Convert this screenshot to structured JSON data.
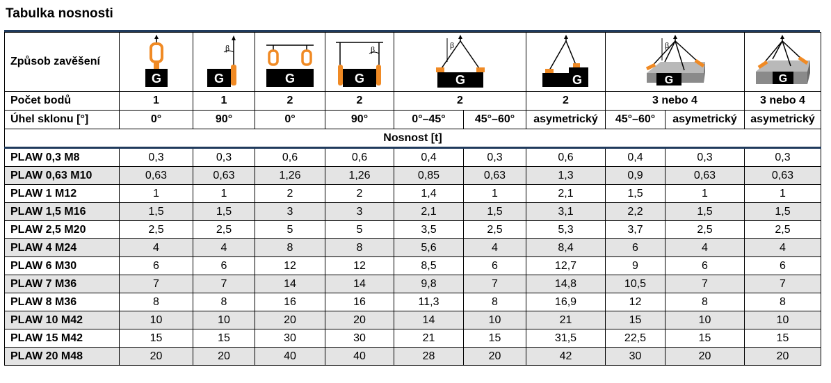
{
  "title": "Tabulka nosnosti",
  "rows_header": {
    "mode_label": "Způsob zavěšení",
    "points_label": "Počet bodů",
    "angle_label": "Úhel sklonu [°]",
    "capacity_label": "Nosnost [t]"
  },
  "icon_glyph": "G",
  "beta_glyph": "β",
  "icons": [
    "single-vertical-lift-icon",
    "single-angled-lift-icon",
    "two-point-vertical-lift-icon",
    "two-point-angled-lift-icon",
    "two-leg-sling-icon",
    "two-leg-asymmetric-sling-icon",
    "multi-leg-sling-icon",
    "multi-leg-asymmetric-sling-icon"
  ],
  "points": [
    "1",
    "1",
    "2",
    "2",
    "2",
    "2",
    "3 nebo 4",
    "3 nebo 4"
  ],
  "angles": [
    "0°",
    "90°",
    "0°",
    "90°",
    "0°–45°",
    "45°–60°",
    "asymetrický",
    "45°–60°",
    "asymetrický",
    "asymetrický"
  ],
  "data_rows": [
    {
      "name": "PLAW 0,3 M8",
      "values": [
        "0,3",
        "0,3",
        "0,6",
        "0,6",
        "0,4",
        "0,3",
        "0,6",
        "0,4",
        "0,3",
        "0,3"
      ]
    },
    {
      "name": "PLAW 0,63 M10",
      "values": [
        "0,63",
        "0,63",
        "1,26",
        "1,26",
        "0,85",
        "0,63",
        "1,3",
        "0,9",
        "0,63",
        "0,63"
      ]
    },
    {
      "name": "PLAW 1 M12",
      "values": [
        "1",
        "1",
        "2",
        "2",
        "1,4",
        "1",
        "2,1",
        "1,5",
        "1",
        "1"
      ]
    },
    {
      "name": "PLAW 1,5 M16",
      "values": [
        "1,5",
        "1,5",
        "3",
        "3",
        "2,1",
        "1,5",
        "3,1",
        "2,2",
        "1,5",
        "1,5"
      ]
    },
    {
      "name": "PLAW 2,5 M20",
      "values": [
        "2,5",
        "2,5",
        "5",
        "5",
        "3,5",
        "2,5",
        "5,3",
        "3,7",
        "2,5",
        "2,5"
      ]
    },
    {
      "name": "PLAW 4 M24",
      "values": [
        "4",
        "4",
        "8",
        "8",
        "5,6",
        "4",
        "8,4",
        "6",
        "4",
        "4"
      ]
    },
    {
      "name": "PLAW 6 M30",
      "values": [
        "6",
        "6",
        "12",
        "12",
        "8,5",
        "6",
        "12,7",
        "9",
        "6",
        "6"
      ]
    },
    {
      "name": "PLAW 7 M36",
      "values": [
        "7",
        "7",
        "14",
        "14",
        "9,8",
        "7",
        "14,8",
        "10,5",
        "7",
        "7"
      ]
    },
    {
      "name": "PLAW 8 M36",
      "values": [
        "8",
        "8",
        "16",
        "16",
        "11,3",
        "8",
        "16,9",
        "12",
        "8",
        "8"
      ]
    },
    {
      "name": "PLAW 10 M42",
      "values": [
        "10",
        "10",
        "20",
        "20",
        "14",
        "10",
        "21",
        "15",
        "10",
        "10"
      ]
    },
    {
      "name": "PLAW 15 M42",
      "values": [
        "15",
        "15",
        "30",
        "30",
        "21",
        "15",
        "31,5",
        "22,5",
        "15",
        "15"
      ]
    },
    {
      "name": "PLAW 20 M48",
      "values": [
        "20",
        "20",
        "40",
        "40",
        "28",
        "20",
        "42",
        "30",
        "20",
        "20"
      ]
    }
  ],
  "colors": {
    "accent": "#f08a24",
    "rule": "#1f3a5c",
    "alt_row": "#e4e4e4",
    "load": "#000000",
    "platform": "#b9b9b9"
  }
}
